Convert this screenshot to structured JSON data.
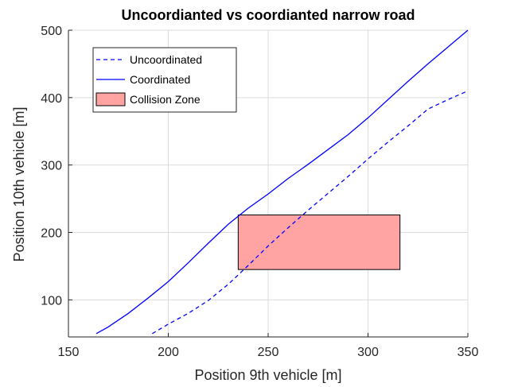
{
  "chart_data": {
    "type": "line",
    "title": "Uncoordianted vs coordianted narrow road",
    "xlabel": "Position 9th vehicle [m]",
    "ylabel": "Position 10th vehicle [m]",
    "xlim": [
      150,
      350
    ],
    "ylim": [
      45,
      500
    ],
    "xticks": [
      150,
      200,
      250,
      300,
      350
    ],
    "yticks": [
      100,
      200,
      300,
      400,
      500
    ],
    "grid": true,
    "legend_position": "top-left",
    "series": [
      {
        "name": "Uncoordinated",
        "style": "dashed",
        "color": "#0000ff",
        "x": [
          192,
          200,
          210,
          220,
          230,
          240,
          250,
          260,
          270,
          280,
          290,
          300,
          310,
          320,
          330,
          340,
          350
        ],
        "y": [
          50,
          64,
          80,
          99,
          123,
          151,
          180,
          207,
          233,
          258,
          283,
          309,
          334,
          358,
          383,
          397,
          410
        ]
      },
      {
        "name": "Coordinated",
        "style": "solid",
        "color": "#0000ff",
        "x": [
          164,
          170,
          180,
          190,
          200,
          210,
          220,
          230,
          240,
          250,
          260,
          270,
          280,
          290,
          300,
          310,
          320,
          330,
          340,
          350
        ],
        "y": [
          50,
          60,
          80,
          103,
          127,
          155,
          184,
          212,
          236,
          257,
          280,
          301,
          323,
          345,
          370,
          397,
          424,
          450,
          475,
          500
        ]
      }
    ],
    "zones": [
      {
        "name": "Collision Zone",
        "color": "#ffa3a3",
        "x": [
          235,
          316
        ],
        "y": [
          145,
          226
        ]
      }
    ]
  }
}
